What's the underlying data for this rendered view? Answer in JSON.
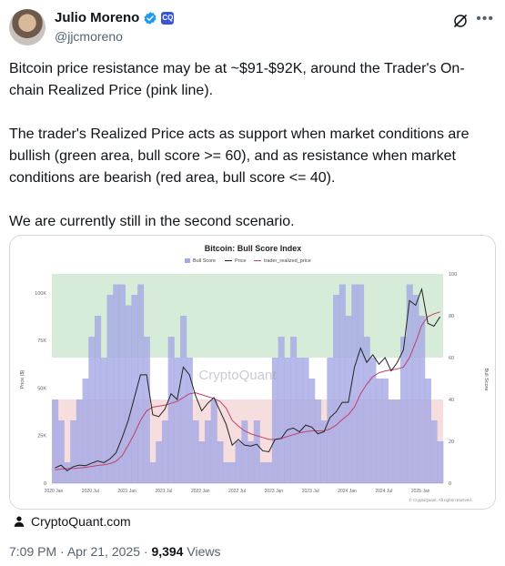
{
  "author": {
    "name": "Julio Moreno",
    "handle": "@jjcmoreno",
    "affiliate_badge": "CQ"
  },
  "tweet": {
    "paragraphs": [
      "Bitcoin price resistance may be at ~$91-$92K, around the Trader's On-chain Realized Price (pink line).",
      "The trader's Realized Price acts as support when market conditions are bullish (green area, bull score >= 60), and as resistance when market conditions are bearish (red area, bull score <= 40).",
      "We are currently still in the second scenario."
    ]
  },
  "source": {
    "icon": "person-icon",
    "label": "CryptoQuant.com"
  },
  "footer": {
    "time": "7:09 PM",
    "separator": " · ",
    "date": "Apr 21, 2025",
    "views_count": "9,394",
    "views_label": " Views"
  },
  "colors": {
    "bull_zone": "#d7ecd8",
    "bear_zone": "#f6dede",
    "score_bars": "#a6a9e4",
    "price_line": "#222222",
    "realized_line": "#c2406a",
    "verified": "#1d9bf0"
  },
  "chart_data": {
    "type": "bar",
    "title": "Bitcoin: Bull Score Index",
    "legend": [
      "Bull Score",
      "Price",
      "trader_realized_price"
    ],
    "legend_position": "top-center",
    "ylabel_left": "Price ($)",
    "ylabel_right": "Bull Score",
    "left_ticks": [
      "0",
      "25K",
      "50K",
      "75K",
      "100K"
    ],
    "right_ticks": [
      "0",
      "20",
      "40",
      "60",
      "80",
      "100"
    ],
    "x_ticks": [
      "2020 Jan",
      "2020 Jul",
      "2021 Jan",
      "2021 Jul",
      "2022 Jan",
      "2022 Jul",
      "2023 Jan",
      "2023 Jul",
      "2024 Jan",
      "2024 Jul",
      "2025 Jan"
    ],
    "left_ylim": [
      0,
      110000
    ],
    "right_ylim": [
      0,
      100
    ],
    "bull_threshold": 60,
    "bear_threshold": 40,
    "watermark": "CryptoQuant",
    "credit": "© CryptoQuant. All rights reserved.",
    "dates": [
      "2020-01",
      "2020-02",
      "2020-03",
      "2020-04",
      "2020-05",
      "2020-06",
      "2020-07",
      "2020-08",
      "2020-09",
      "2020-10",
      "2020-11",
      "2020-12",
      "2021-01",
      "2021-02",
      "2021-03",
      "2021-04",
      "2021-05",
      "2021-06",
      "2021-07",
      "2021-08",
      "2021-09",
      "2021-10",
      "2021-11",
      "2021-12",
      "2022-01",
      "2022-02",
      "2022-03",
      "2022-04",
      "2022-05",
      "2022-06",
      "2022-07",
      "2022-08",
      "2022-09",
      "2022-10",
      "2022-11",
      "2022-12",
      "2023-01",
      "2023-02",
      "2023-03",
      "2023-04",
      "2023-05",
      "2023-06",
      "2023-07",
      "2023-08",
      "2023-09",
      "2023-10",
      "2023-11",
      "2023-12",
      "2024-01",
      "2024-02",
      "2024-03",
      "2024-04",
      "2024-05",
      "2024-06",
      "2024-07",
      "2024-08",
      "2024-09",
      "2024-10",
      "2024-11",
      "2024-12",
      "2025-01",
      "2025-02",
      "2025-03",
      "2025-04"
    ],
    "series": [
      {
        "name": "Bull Score",
        "values": [
          40,
          30,
          10,
          30,
          40,
          50,
          70,
          80,
          60,
          90,
          95,
          95,
          85,
          90,
          95,
          70,
          10,
          20,
          30,
          70,
          60,
          80,
          60,
          30,
          20,
          30,
          40,
          20,
          10,
          10,
          20,
          30,
          20,
          30,
          10,
          10,
          60,
          70,
          60,
          70,
          60,
          60,
          50,
          40,
          30,
          60,
          90,
          95,
          80,
          95,
          95,
          70,
          60,
          50,
          50,
          40,
          40,
          70,
          95,
          90,
          80,
          50,
          30,
          20
        ]
      },
      {
        "name": "Price",
        "values": [
          8000,
          9500,
          6500,
          8700,
          9500,
          9200,
          10500,
          11700,
          10800,
          12800,
          16000,
          24000,
          33000,
          45000,
          57000,
          57000,
          36000,
          35000,
          39000,
          47000,
          44000,
          61000,
          57000,
          46000,
          38000,
          42000,
          45000,
          38000,
          31000,
          20000,
          23000,
          20000,
          19500,
          20500,
          17000,
          16500,
          23000,
          23500,
          28000,
          29000,
          27000,
          30500,
          29500,
          26000,
          27000,
          34500,
          37500,
          42500,
          42500,
          61000,
          71000,
          63500,
          67500,
          62500,
          66000,
          59000,
          63500,
          70000,
          96000,
          93500,
          102000,
          84000,
          82500,
          87500
        ]
      },
      {
        "name": "trader_realized_price",
        "values": [
          7000,
          7500,
          7700,
          7800,
          8000,
          8300,
          8800,
          9300,
          9700,
          10300,
          11500,
          14500,
          20000,
          26000,
          33000,
          38000,
          40000,
          40500,
          41000,
          42000,
          43000,
          45000,
          47000,
          47500,
          46500,
          45500,
          44500,
          43000,
          39500,
          33000,
          30000,
          27500,
          26000,
          25000,
          24000,
          23000,
          23000,
          23500,
          24500,
          25500,
          26500,
          27000,
          27500,
          27500,
          27500,
          28500,
          30500,
          33500,
          36000,
          40000,
          47000,
          52000,
          56000,
          58000,
          59000,
          59500,
          60000,
          61000,
          66000,
          74000,
          83000,
          87500,
          89000,
          90000
        ]
      }
    ]
  }
}
